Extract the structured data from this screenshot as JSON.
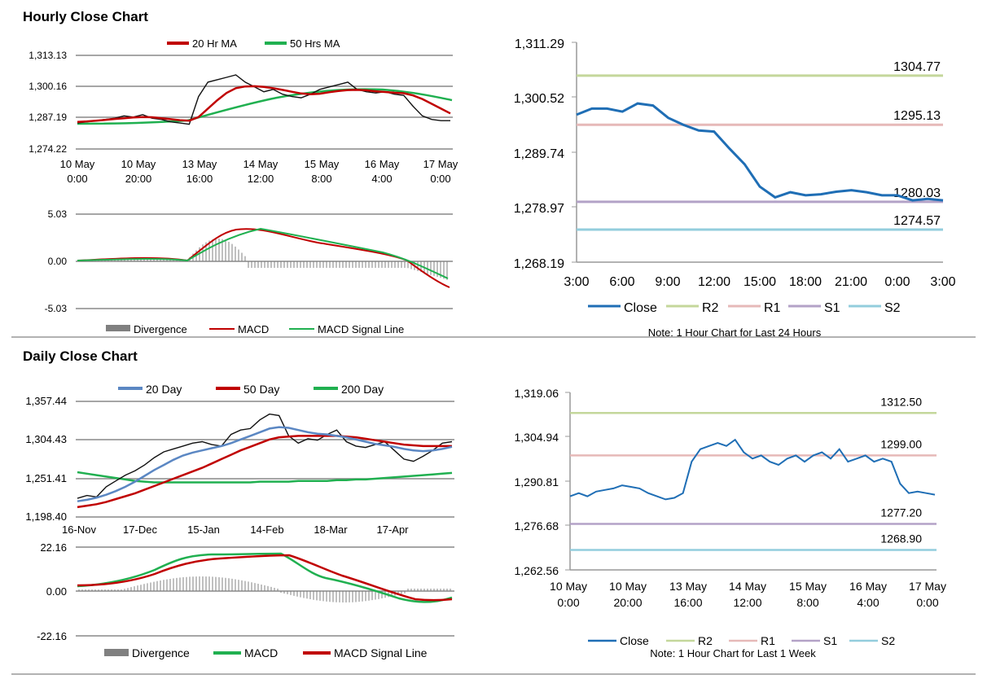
{
  "colors": {
    "ma20_hourly": "#c00000",
    "ma50_hourly": "#20b050",
    "divergence": "#808080",
    "close": "#1f6eb5",
    "r2": "#c4d79b",
    "r1": "#e6b9b8",
    "s1": "#b3a2c7",
    "s2": "#93cddd",
    "day20": "#5b87c3",
    "day50": "#c00000",
    "day200": "#20b050"
  },
  "sections": {
    "hourly_title": "Hourly Close Chart",
    "daily_title": "Daily Close Chart"
  },
  "chart_data": [
    {
      "id": "hourly_price",
      "type": "line",
      "legend": [
        "20 Hr MA",
        "50 Hrs MA"
      ],
      "y_ticks": [
        "1,313.13",
        "1,300.16",
        "1,287.19",
        "1,274.22"
      ],
      "ylim": [
        1274.22,
        1313.13
      ],
      "x_ticks": [
        [
          "10 May",
          "0:00"
        ],
        [
          "10 May",
          "20:00"
        ],
        [
          "13 May",
          "16:00"
        ],
        [
          "14 May",
          "12:00"
        ],
        [
          "15 May",
          "8:00"
        ],
        [
          "16 May",
          "4:00"
        ],
        [
          "17 May",
          "0:00"
        ]
      ],
      "price": [
        1285,
        1285.5,
        1286,
        1286.5,
        1287,
        1288,
        1287.5,
        1288.5,
        1287,
        1286.5,
        1285.5,
        1285,
        1284.5,
        1296,
        1302,
        1303,
        1304,
        1305,
        1302,
        1300,
        1298,
        1299,
        1297,
        1296,
        1295.5,
        1297,
        1299,
        1300,
        1301,
        1302,
        1299,
        1298,
        1297.5,
        1298,
        1297,
        1296.5,
        1292,
        1288,
        1286.5,
        1286,
        1286
      ],
      "ma20": [
        1285.5,
        1285.7,
        1286,
        1286.3,
        1286.7,
        1287,
        1287.3,
        1287.5,
        1287.4,
        1287,
        1286.6,
        1286.2,
        1286,
        1287.5,
        1291,
        1294.5,
        1297.5,
        1299.5,
        1300.2,
        1300.3,
        1300,
        1299.5,
        1298.8,
        1298,
        1297.3,
        1297,
        1297.2,
        1297.8,
        1298.3,
        1298.7,
        1298.8,
        1298.6,
        1298.2,
        1297.9,
        1297.6,
        1297.4,
        1296.5,
        1295,
        1293,
        1291,
        1289
      ]
    },
    {
      "id": "hourly_macd",
      "type": "line",
      "legend": [
        "Divergence",
        "MACD",
        "MACD Signal Line"
      ],
      "y_ticks": [
        "5.03",
        "0.00",
        "-5.03"
      ],
      "ylim": [
        -5.03,
        5.03
      ]
    },
    {
      "id": "hourly_pivot",
      "type": "line",
      "y_ticks": [
        "1,311.29",
        "1,300.52",
        "1,289.74",
        "1,278.97",
        "1,268.19"
      ],
      "ylim": [
        1268.19,
        1311.29
      ],
      "x_ticks": [
        "3:00",
        "6:00",
        "9:00",
        "12:00",
        "15:00",
        "18:00",
        "21:00",
        "0:00",
        "3:00"
      ],
      "close": [
        1297.1,
        1298.3,
        1298.3,
        1297.7,
        1299.3,
        1298.9,
        1296.5,
        1295.1,
        1294,
        1293.8,
        1290.5,
        1287.4,
        1283,
        1280.9,
        1281.9,
        1281.3,
        1281.5,
        1282,
        1282.3,
        1281.9,
        1281.3,
        1281.3,
        1280.3,
        1280.6,
        1280.3
      ],
      "levels": [
        {
          "name": "R2",
          "value": 1304.77,
          "label": "1304.77"
        },
        {
          "name": "R1",
          "value": 1295.13,
          "label": "1295.13"
        },
        {
          "name": "S1",
          "value": 1280.03,
          "label": "1280.03"
        },
        {
          "name": "S2",
          "value": 1274.57,
          "label": "1274.57"
        }
      ],
      "legend": [
        "Close",
        "R2",
        "R1",
        "S1",
        "S2"
      ],
      "note": "Note: 1 Hour Chart for Last 24 Hours"
    },
    {
      "id": "daily_price",
      "type": "line",
      "legend": [
        "20 Day",
        "50 Day",
        "200 Day"
      ],
      "y_ticks": [
        "1,357.44",
        "1,304.43",
        "1,251.41",
        "1,198.40"
      ],
      "ylim": [
        1198.4,
        1357.44
      ],
      "x_ticks": [
        "16-Nov",
        "17-Dec",
        "15-Jan",
        "14-Feb",
        "18-Mar",
        "17-Apr"
      ],
      "price": [
        1224,
        1228,
        1226,
        1240,
        1248,
        1256,
        1262,
        1270,
        1280,
        1288,
        1292,
        1296,
        1300,
        1302,
        1298,
        1296,
        1312,
        1318,
        1320,
        1332,
        1340,
        1338,
        1310,
        1300,
        1306,
        1304,
        1312,
        1318,
        1302,
        1296,
        1294,
        1298,
        1302,
        1290,
        1278,
        1275,
        1282,
        1290,
        1300,
        1302
      ],
      "ma20": [
        1220,
        1222,
        1225,
        1229,
        1234,
        1240,
        1247,
        1255,
        1263,
        1270,
        1277,
        1283,
        1287,
        1290,
        1293,
        1296,
        1300,
        1305,
        1310,
        1315,
        1320,
        1322,
        1321,
        1318,
        1315,
        1313,
        1312,
        1310,
        1308,
        1305,
        1302,
        1299,
        1297,
        1295,
        1292,
        1290,
        1289,
        1290,
        1292,
        1295
      ],
      "ma50": [
        1212,
        1214,
        1216,
        1219,
        1223,
        1227,
        1231,
        1236,
        1241,
        1246,
        1251,
        1256,
        1261,
        1266,
        1272,
        1278,
        1284,
        1290,
        1295,
        1300,
        1305,
        1308,
        1309,
        1310,
        1310,
        1310,
        1310,
        1310,
        1309,
        1308,
        1306,
        1304,
        1302,
        1300,
        1298,
        1297,
        1296,
        1296,
        1296,
        1296
      ],
      "ma200": [
        1260,
        1258,
        1256,
        1254,
        1252,
        1250,
        1248,
        1247,
        1246,
        1246,
        1246,
        1246,
        1246,
        1246,
        1246,
        1246,
        1246,
        1246,
        1246,
        1247,
        1247,
        1247,
        1247,
        1248,
        1248,
        1248,
        1248,
        1249,
        1249,
        1250,
        1250,
        1251,
        1252,
        1253,
        1254,
        1255,
        1256,
        1257,
        1258,
        1259
      ]
    },
    {
      "id": "daily_macd",
      "type": "line",
      "legend": [
        "Divergence",
        "MACD",
        "MACD Signal Line"
      ],
      "y_ticks": [
        "22.16",
        "0.00",
        "-22.16"
      ],
      "ylim": [
        -22.16,
        22.16
      ]
    },
    {
      "id": "weekly_pivot",
      "type": "line",
      "y_ticks": [
        "1,319.06",
        "1,304.94",
        "1,290.81",
        "1,276.68",
        "1,262.56"
      ],
      "ylim": [
        1262.56,
        1319.06
      ],
      "x_ticks": [
        [
          "10 May",
          "0:00"
        ],
        [
          "10 May",
          "20:00"
        ],
        [
          "13 May",
          "16:00"
        ],
        [
          "14 May",
          "12:00"
        ],
        [
          "15 May",
          "8:00"
        ],
        [
          "16 May",
          "4:00"
        ],
        [
          "17 May",
          "0:00"
        ]
      ],
      "close": [
        1286,
        1287,
        1286,
        1287.5,
        1288,
        1288.5,
        1289.5,
        1289,
        1288.5,
        1287,
        1286,
        1285,
        1285.5,
        1287,
        1297,
        1301,
        1302,
        1303,
        1302,
        1304,
        1300,
        1298,
        1299,
        1297,
        1296,
        1298,
        1299,
        1297,
        1299,
        1300,
        1298,
        1301,
        1297,
        1298,
        1299,
        1297,
        1298,
        1297,
        1290,
        1287,
        1287.5,
        1287,
        1286.5
      ],
      "levels": [
        {
          "name": "R2",
          "value": 1312.5,
          "label": "1312.50"
        },
        {
          "name": "R1",
          "value": 1299.0,
          "label": "1299.00"
        },
        {
          "name": "S1",
          "value": 1277.2,
          "label": "1277.20"
        },
        {
          "name": "S2",
          "value": 1268.9,
          "label": "1268.90"
        }
      ],
      "legend": [
        "Close",
        "R2",
        "R1",
        "S1",
        "S2"
      ],
      "note": "Note: 1 Hour Chart for Last 1 Week"
    }
  ]
}
